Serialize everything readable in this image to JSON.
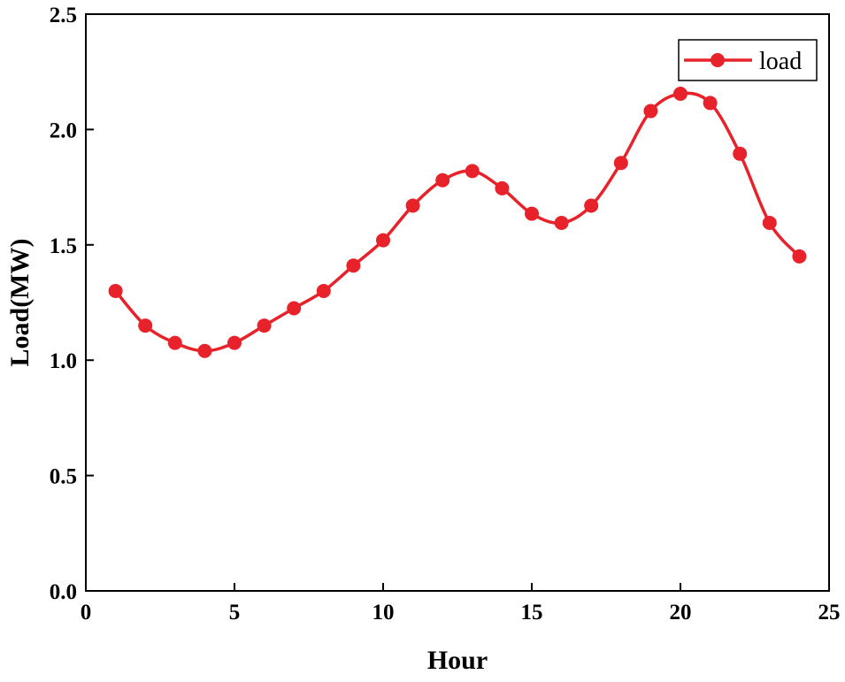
{
  "chart_data": {
    "type": "line",
    "title": "",
    "xlabel": "Hour",
    "ylabel": "Load(MW)",
    "xlim": [
      0,
      25
    ],
    "ylim": [
      0.0,
      2.5
    ],
    "xticks": [
      0,
      5,
      10,
      15,
      20,
      25
    ],
    "yticks": [
      0.0,
      0.5,
      1.0,
      1.5,
      2.0,
      2.5
    ],
    "xtick_labels": [
      "0",
      "5",
      "10",
      "15",
      "20",
      "25"
    ],
    "ytick_labels": [
      "0.0",
      "0.5",
      "1.0",
      "1.5",
      "2.0",
      "2.5"
    ],
    "grid": false,
    "legend_position": "top-right",
    "series": [
      {
        "name": "load",
        "color": "#e8222a",
        "smooth": true,
        "x": [
          1,
          2,
          3,
          4,
          5,
          6,
          7,
          8,
          9,
          10,
          11,
          12,
          13,
          14,
          15,
          16,
          17,
          18,
          19,
          20,
          21,
          22,
          23,
          24
        ],
        "y": [
          1.3,
          1.15,
          1.075,
          1.04,
          1.075,
          1.15,
          1.225,
          1.3,
          1.41,
          1.52,
          1.67,
          1.78,
          1.82,
          1.745,
          1.635,
          1.595,
          1.67,
          1.855,
          2.08,
          2.155,
          2.115,
          1.895,
          1.595,
          1.45
        ]
      }
    ]
  }
}
